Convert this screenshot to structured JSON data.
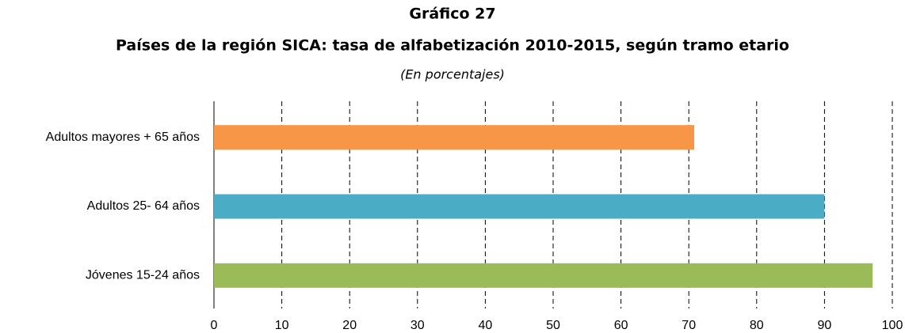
{
  "chart_data": {
    "type": "bar",
    "orientation": "horizontal",
    "title": "Gráfico 27",
    "subtitle": "Países de la región SICA: tasa de alfabetización 2010-2015, según tramo etario",
    "note": "(En porcentajes)",
    "categories": [
      "Adultos mayores + 65 años",
      "Adultos 25- 64 años",
      "Jóvenes 15-24 años"
    ],
    "values": [
      70.8,
      90,
      97.1
    ],
    "colors": [
      "#f79646",
      "#4bacc6",
      "#9bbb59"
    ],
    "xlim": [
      0,
      100
    ],
    "xticks": [
      0,
      10,
      20,
      30,
      40,
      50,
      60,
      70,
      80,
      90,
      100
    ],
    "grid": true
  }
}
